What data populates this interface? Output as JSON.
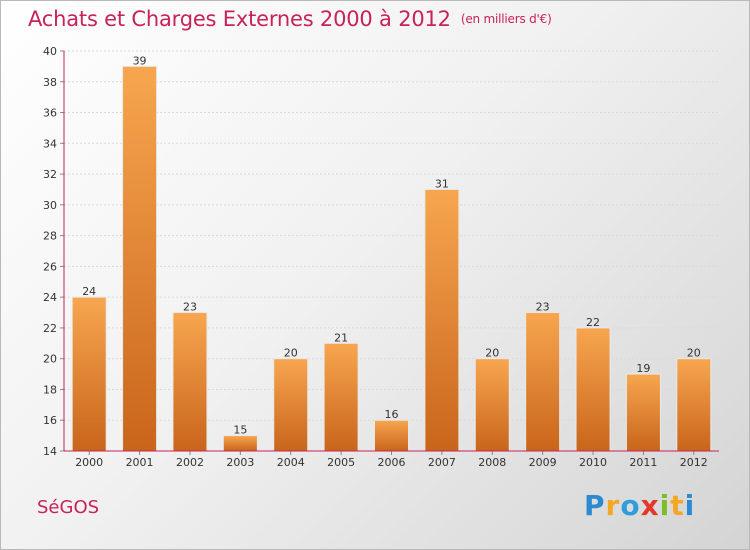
{
  "header": {
    "title": "Achats et Charges Externes 2000 à 2012",
    "unit": "(en milliers d'€)"
  },
  "footer": {
    "place": "SéGOS",
    "brand": [
      "P",
      "r",
      "o",
      "x",
      "i",
      "t",
      "i"
    ]
  },
  "colors": {
    "bar_top": "#f7a64f",
    "bar_bottom": "#c9651b",
    "title": "#c8225a",
    "axis": "#c8225a"
  },
  "chart_data": {
    "type": "bar",
    "categories": [
      "2000",
      "2001",
      "2002",
      "2003",
      "2004",
      "2005",
      "2006",
      "2007",
      "2008",
      "2009",
      "2010",
      "2011",
      "2012"
    ],
    "values": [
      24,
      39,
      23,
      15,
      20,
      21,
      16,
      31,
      20,
      23,
      22,
      19,
      20
    ],
    "ylim": [
      14,
      40
    ],
    "yticks": [
      14,
      16,
      18,
      20,
      22,
      24,
      26,
      28,
      30,
      32,
      34,
      36,
      38,
      40
    ],
    "grid": true,
    "data_labels": true
  }
}
